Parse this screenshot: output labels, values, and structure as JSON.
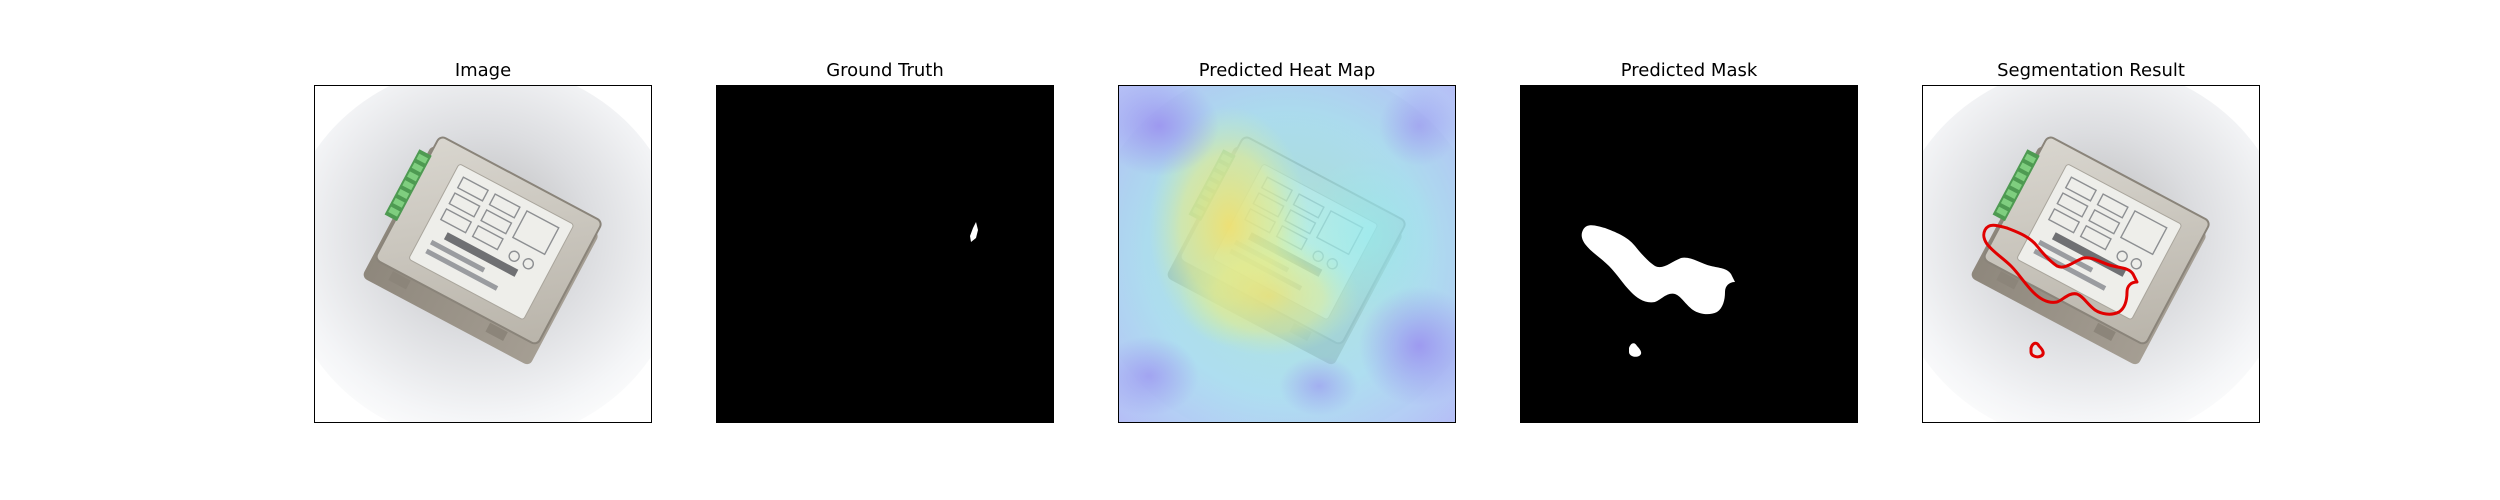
{
  "panels": [
    {
      "title": "Image"
    },
    {
      "title": "Ground Truth"
    },
    {
      "title": "Predicted Heat Map"
    },
    {
      "title": "Predicted Mask"
    },
    {
      "title": "Segmentation Result"
    }
  ],
  "colors": {
    "background": "#ffffff",
    "mask_background": "#000000",
    "mask_foreground": "#ffffff",
    "contour": "#e00000",
    "heatmap_cool": "#8fa8f0",
    "heatmap_mid": "#8ee6e0",
    "heatmap_hot": "#e8e070"
  }
}
